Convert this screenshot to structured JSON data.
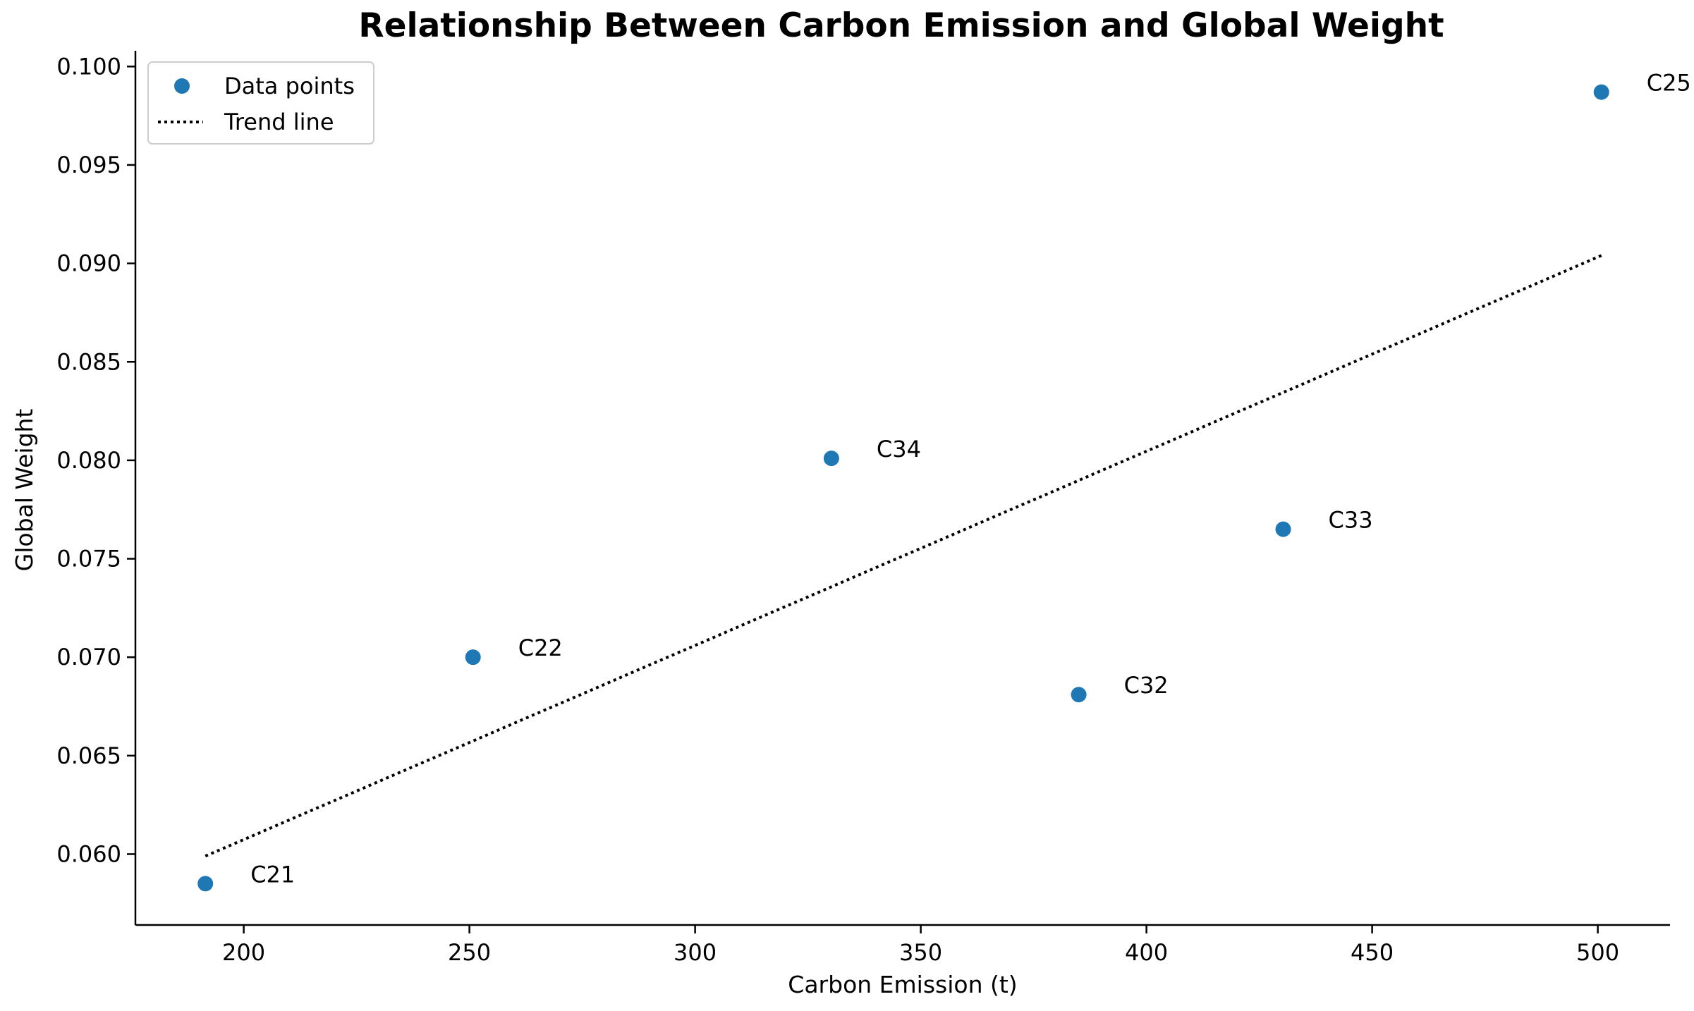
{
  "chart_data": {
    "type": "scatter",
    "title": "Relationship Between Carbon Emission and Global Weight",
    "xlabel": "Carbon Emission (t)",
    "ylabel": "Global Weight",
    "xlim": [
      176,
      516
    ],
    "ylim": [
      0.0564,
      0.1008
    ],
    "x_ticks": [
      200,
      250,
      300,
      350,
      400,
      450,
      500
    ],
    "y_ticks": [
      0.06,
      0.065,
      0.07,
      0.075,
      0.08,
      0.085,
      0.09,
      0.095,
      0.1
    ],
    "x_tick_labels": [
      "200",
      "250",
      "300",
      "350",
      "400",
      "450",
      "500"
    ],
    "y_tick_labels": [
      "0.060",
      "0.065",
      "0.070",
      "0.075",
      "0.080",
      "0.085",
      "0.090",
      "0.095",
      "0.100"
    ],
    "grid": false,
    "legend_position": "top-left",
    "legend": [
      "Data points",
      "Trend line"
    ],
    "series": [
      {
        "name": "Data points",
        "type": "scatter",
        "color": "#1f77b4",
        "points": [
          {
            "label": "C21",
            "x": 191.5,
            "y": 0.0585
          },
          {
            "label": "C22",
            "x": 250.8,
            "y": 0.07
          },
          {
            "label": "C34",
            "x": 330.2,
            "y": 0.0801
          },
          {
            "label": "C32",
            "x": 385.0,
            "y": 0.0681
          },
          {
            "label": "C33",
            "x": 430.3,
            "y": 0.0765
          },
          {
            "label": "C25",
            "x": 500.8,
            "y": 0.0987
          }
        ]
      },
      {
        "name": "Trend line",
        "type": "line",
        "style": "dotted",
        "color": "#000000",
        "x": [
          191.5,
          500.8
        ],
        "y": [
          0.0599,
          0.0904
        ]
      }
    ]
  }
}
